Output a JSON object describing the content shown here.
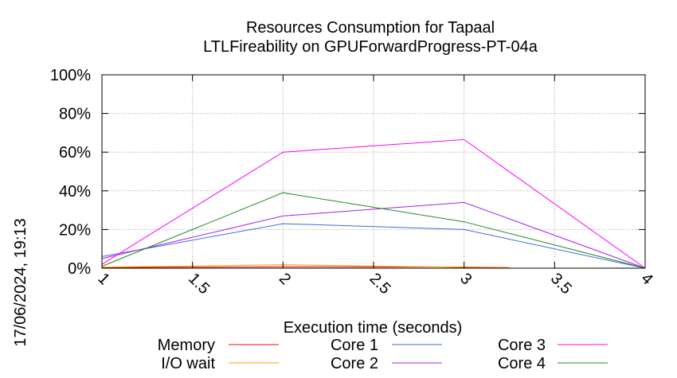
{
  "chart_data": {
    "type": "line",
    "title": "Resources Consumption for Tapaal",
    "subtitle": "LTLFireability on GPUForwardProgress-PT-04a",
    "xlabel": "Execution time (seconds)",
    "ylabel": "",
    "timestamp": "17/06/2024, 19:13",
    "xlim": [
      1,
      4
    ],
    "ylim": [
      0,
      100
    ],
    "x_ticks": [
      "1",
      "1.5",
      "2",
      "2.5",
      "3",
      "3.5",
      "4"
    ],
    "y_ticks": [
      "0%",
      "20%",
      "40%",
      "60%",
      "80%",
      "100%"
    ],
    "grid": true,
    "legend_position": "bottom",
    "series": [
      {
        "name": "Memory",
        "color": "#ff0000",
        "x": [
          1,
          2,
          3,
          3.25
        ],
        "y": [
          0.3,
          0.8,
          0.6,
          0.3
        ]
      },
      {
        "name": "I/O wait",
        "color": "#ffa500",
        "x": [
          1,
          2,
          3,
          3.25
        ],
        "y": [
          0.5,
          1.8,
          0.4,
          0.2
        ]
      },
      {
        "name": "Core 1",
        "color": "#4169e1",
        "x": [
          1,
          2,
          3,
          4
        ],
        "y": [
          6,
          23,
          20,
          0
        ]
      },
      {
        "name": "Core 2",
        "color": "#a020f0",
        "x": [
          1,
          2,
          3,
          4
        ],
        "y": [
          5,
          27,
          34,
          0
        ]
      },
      {
        "name": "Core 3",
        "color": "#ff00ff",
        "x": [
          1,
          2,
          3,
          4
        ],
        "y": [
          2,
          60,
          66.5,
          0
        ]
      },
      {
        "name": "Core 4",
        "color": "#228b22",
        "x": [
          1,
          2,
          3,
          4
        ],
        "y": [
          1,
          39,
          24,
          0
        ]
      }
    ]
  }
}
